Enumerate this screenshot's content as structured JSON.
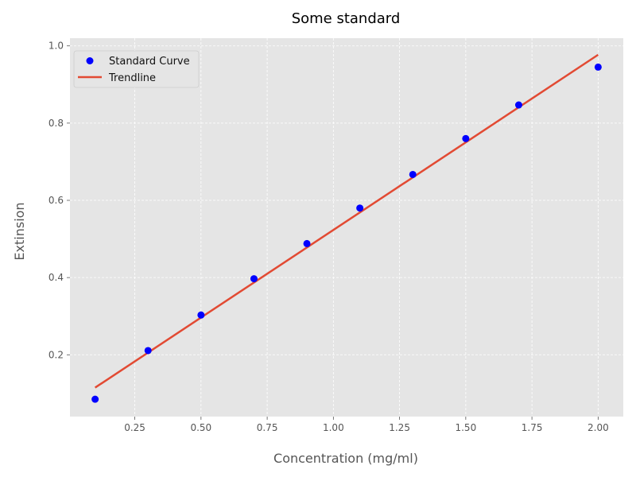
{
  "chart_data": {
    "type": "scatter",
    "title": "Some standard",
    "xlabel": "Concentration (mg/ml)",
    "ylabel": "Extinsion",
    "xlim": [
      0.005,
      2.095
    ],
    "ylim": [
      0.04,
      1.02
    ],
    "x_ticks": [
      0.25,
      0.5,
      0.75,
      1.0,
      1.25,
      1.5,
      1.75,
      2.0
    ],
    "x_tick_labels": [
      "0.25",
      "0.50",
      "0.75",
      "1.00",
      "1.25",
      "1.50",
      "1.75",
      "2.00"
    ],
    "y_ticks": [
      0.2,
      0.4,
      0.6,
      0.8,
      1.0
    ],
    "y_tick_labels": [
      "0.2",
      "0.4",
      "0.6",
      "0.8",
      "1.0"
    ],
    "grid": true,
    "legend_position": "top-left",
    "series": [
      {
        "name": "Standard Curve",
        "kind": "scatter",
        "color": "#0000ff",
        "x": [
          0.1,
          0.3,
          0.5,
          0.7,
          0.9,
          1.1,
          1.3,
          1.5,
          1.7,
          2.0
        ],
        "y": [
          0.085,
          0.211,
          0.303,
          0.397,
          0.488,
          0.58,
          0.667,
          0.76,
          0.847,
          0.945
        ]
      },
      {
        "name": "Trendline",
        "kind": "line",
        "color": "#e24a33",
        "x": [
          0.1,
          2.0
        ],
        "y": [
          0.115,
          0.977
        ]
      }
    ],
    "background_color": "#e5e5e5",
    "grid_color": "#ffffff"
  }
}
